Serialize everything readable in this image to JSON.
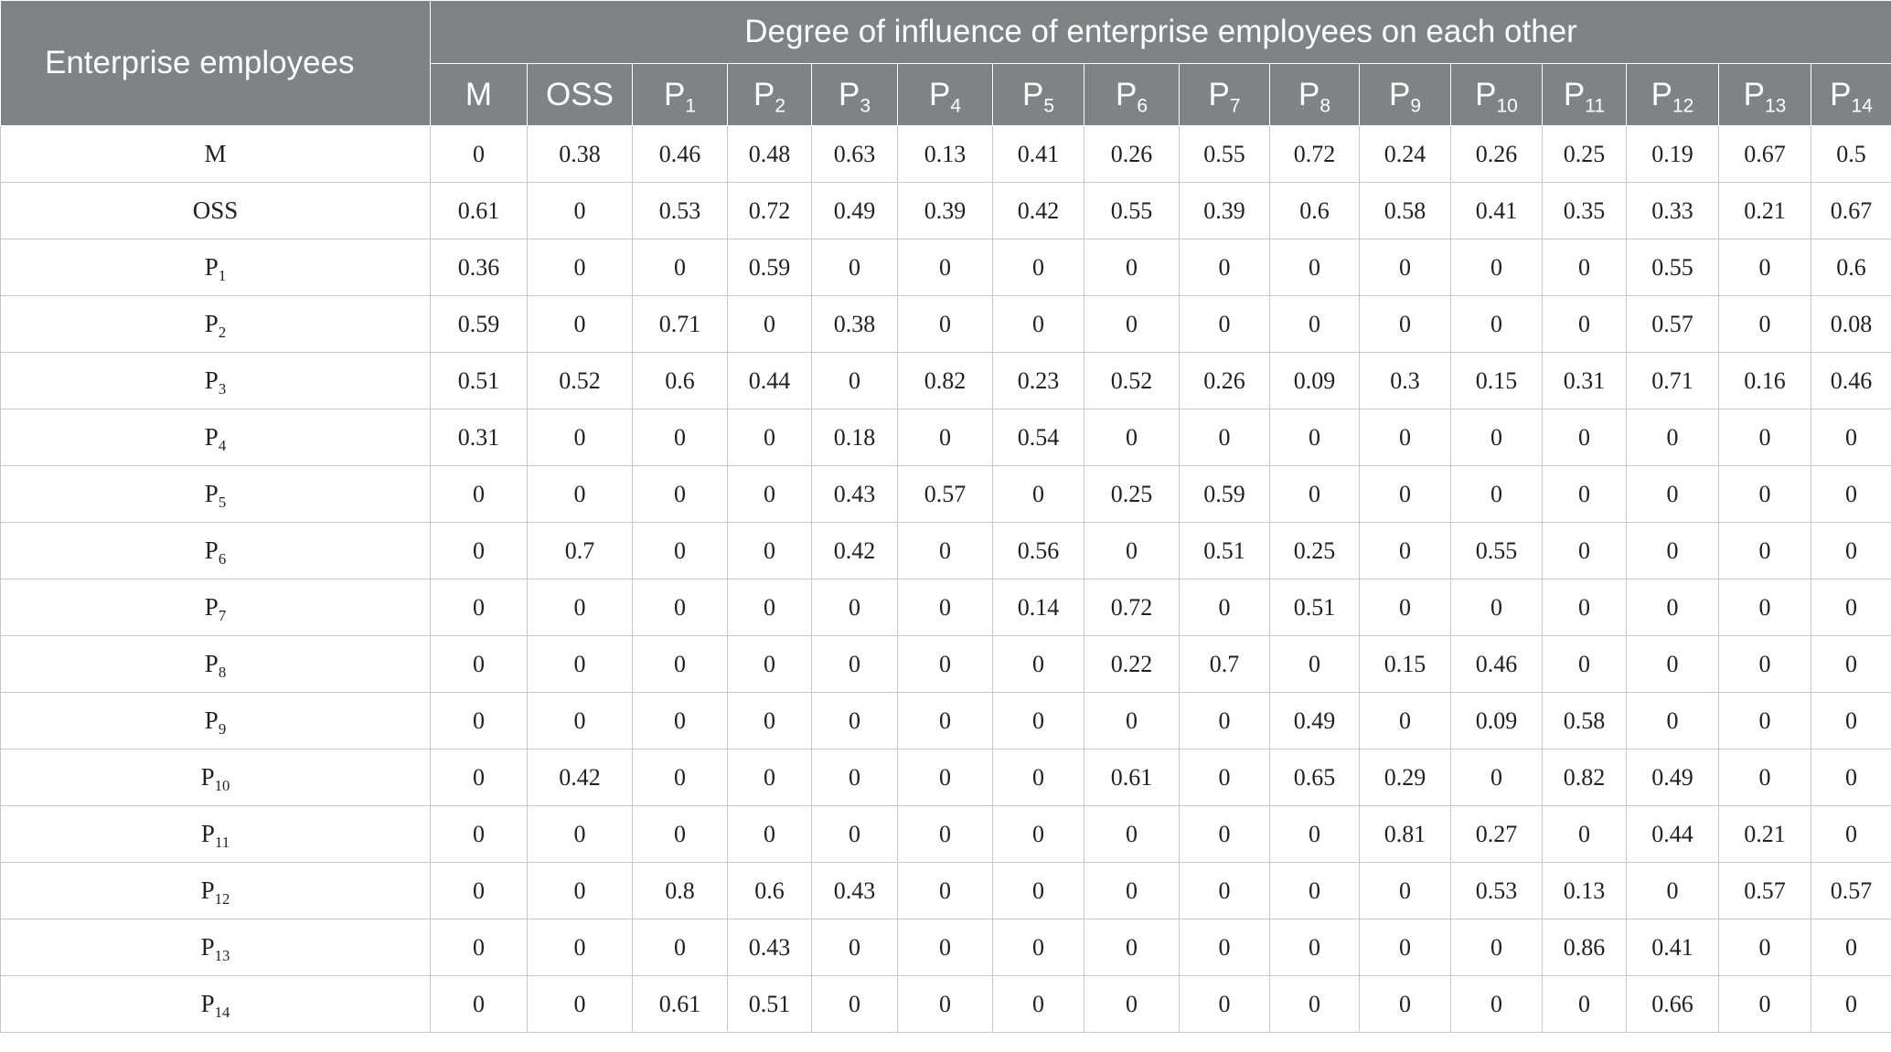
{
  "table": {
    "corner_label": "Enterprise employees",
    "group_header": "Degree of influence of enterprise employees on each other",
    "columns": [
      {
        "base": "M",
        "sub": ""
      },
      {
        "base": "OSS",
        "sub": ""
      },
      {
        "base": "P",
        "sub": "1"
      },
      {
        "base": "P",
        "sub": "2"
      },
      {
        "base": "P",
        "sub": "3"
      },
      {
        "base": "P",
        "sub": "4"
      },
      {
        "base": "P",
        "sub": "5"
      },
      {
        "base": "P",
        "sub": "6"
      },
      {
        "base": "P",
        "sub": "7"
      },
      {
        "base": "P",
        "sub": "8"
      },
      {
        "base": "P",
        "sub": "9"
      },
      {
        "base": "P",
        "sub": "10"
      },
      {
        "base": "P",
        "sub": "11"
      },
      {
        "base": "P",
        "sub": "12"
      },
      {
        "base": "P",
        "sub": "13"
      },
      {
        "base": "P",
        "sub": "14"
      }
    ],
    "rows": [
      {
        "base": "M",
        "sub": "",
        "values": [
          "0",
          "0.38",
          "0.46",
          "0.48",
          "0.63",
          "0.13",
          "0.41",
          "0.26",
          "0.55",
          "0.72",
          "0.24",
          "0.26",
          "0.25",
          "0.19",
          "0.67",
          "0.5"
        ]
      },
      {
        "base": "OSS",
        "sub": "",
        "values": [
          "0.61",
          "0",
          "0.53",
          "0.72",
          "0.49",
          "0.39",
          "0.42",
          "0.55",
          "0.39",
          "0.6",
          "0.58",
          "0.41",
          "0.35",
          "0.33",
          "0.21",
          "0.67"
        ]
      },
      {
        "base": "P",
        "sub": "1",
        "values": [
          "0.36",
          "0",
          "0",
          "0.59",
          "0",
          "0",
          "0",
          "0",
          "0",
          "0",
          "0",
          "0",
          "0",
          "0.55",
          "0",
          "0.6"
        ]
      },
      {
        "base": "P",
        "sub": "2",
        "values": [
          "0.59",
          "0",
          "0.71",
          "0",
          "0.38",
          "0",
          "0",
          "0",
          "0",
          "0",
          "0",
          "0",
          "0",
          "0.57",
          "0",
          "0.08"
        ]
      },
      {
        "base": "P",
        "sub": "3",
        "values": [
          "0.51",
          "0.52",
          "0.6",
          "0.44",
          "0",
          "0.82",
          "0.23",
          "0.52",
          "0.26",
          "0.09",
          "0.3",
          "0.15",
          "0.31",
          "0.71",
          "0.16",
          "0.46"
        ]
      },
      {
        "base": "P",
        "sub": "4",
        "values": [
          "0.31",
          "0",
          "0",
          "0",
          "0.18",
          "0",
          "0.54",
          "0",
          "0",
          "0",
          "0",
          "0",
          "0",
          "0",
          "0",
          "0"
        ]
      },
      {
        "base": "P",
        "sub": "5",
        "values": [
          "0",
          "0",
          "0",
          "0",
          "0.43",
          "0.57",
          "0",
          "0.25",
          "0.59",
          "0",
          "0",
          "0",
          "0",
          "0",
          "0",
          "0"
        ]
      },
      {
        "base": "P",
        "sub": "6",
        "values": [
          "0",
          "0.7",
          "0",
          "0",
          "0.42",
          "0",
          "0.56",
          "0",
          "0.51",
          "0.25",
          "0",
          "0.55",
          "0",
          "0",
          "0",
          "0"
        ]
      },
      {
        "base": "P",
        "sub": "7",
        "values": [
          "0",
          "0",
          "0",
          "0",
          "0",
          "0",
          "0.14",
          "0.72",
          "0",
          "0.51",
          "0",
          "0",
          "0",
          "0",
          "0",
          "0"
        ]
      },
      {
        "base": "P",
        "sub": "8",
        "values": [
          "0",
          "0",
          "0",
          "0",
          "0",
          "0",
          "0",
          "0.22",
          "0.7",
          "0",
          "0.15",
          "0.46",
          "0",
          "0",
          "0",
          "0"
        ]
      },
      {
        "base": "P",
        "sub": "9",
        "values": [
          "0",
          "0",
          "0",
          "0",
          "0",
          "0",
          "0",
          "0",
          "0",
          "0.49",
          "0",
          "0.09",
          "0.58",
          "0",
          "0",
          "0"
        ]
      },
      {
        "base": "P",
        "sub": "10",
        "values": [
          "0",
          "0.42",
          "0",
          "0",
          "0",
          "0",
          "0",
          "0.61",
          "0",
          "0.65",
          "0.29",
          "0",
          "0.82",
          "0.49",
          "0",
          "0"
        ]
      },
      {
        "base": "P",
        "sub": "11",
        "values": [
          "0",
          "0",
          "0",
          "0",
          "0",
          "0",
          "0",
          "0",
          "0",
          "0",
          "0.81",
          "0.27",
          "0",
          "0.44",
          "0.21",
          "0"
        ]
      },
      {
        "base": "P",
        "sub": "12",
        "values": [
          "0",
          "0",
          "0.8",
          "0.6",
          "0.43",
          "0",
          "0",
          "0",
          "0",
          "0",
          "0",
          "0.53",
          "0.13",
          "0",
          "0.57",
          "0.57"
        ]
      },
      {
        "base": "P",
        "sub": "13",
        "values": [
          "0",
          "0",
          "0",
          "0.43",
          "0",
          "0",
          "0",
          "0",
          "0",
          "0",
          "0",
          "0",
          "0.86",
          "0.41",
          "0",
          "0"
        ]
      },
      {
        "base": "P",
        "sub": "14",
        "values": [
          "0",
          "0",
          "0.61",
          "0.51",
          "0",
          "0",
          "0",
          "0",
          "0",
          "0",
          "0",
          "0",
          "0",
          "0.66",
          "0",
          "0"
        ]
      }
    ]
  }
}
